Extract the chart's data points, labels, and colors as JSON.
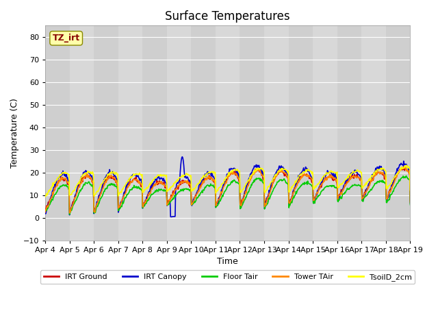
{
  "title": "Surface Temperatures",
  "xlabel": "Time",
  "ylabel": "Temperature (C)",
  "ylim": [
    -10,
    85
  ],
  "yticks": [
    -10,
    0,
    10,
    20,
    30,
    40,
    50,
    60,
    70,
    80
  ],
  "date_labels": [
    "Apr 4",
    "Apr 5",
    "Apr 6",
    "Apr 7",
    "Apr 8",
    "Apr 9",
    "Apr 10",
    "Apr 11",
    "Apr 12",
    "Apr 13",
    "Apr 14",
    "Apr 15",
    "Apr 16",
    "Apr 17",
    "Apr 18",
    "Apr 19"
  ],
  "lines": {
    "IRT Ground": {
      "color": "#cc0000",
      "lw": 1.2
    },
    "IRT Canopy": {
      "color": "#0000cc",
      "lw": 1.2
    },
    "Floor Tair": {
      "color": "#00cc00",
      "lw": 1.2
    },
    "Tower TAir": {
      "color": "#ff8800",
      "lw": 1.2
    },
    "TsoilD_2cm": {
      "color": "#ffff00",
      "lw": 1.2
    }
  },
  "annotation_text": "TZ_irt",
  "annotation_color": "#880000",
  "annotation_bg": "#ffffaa",
  "plot_bg_color": "#d8d8d8",
  "grid_color": "#ffffff",
  "title_fontsize": 12,
  "label_fontsize": 9,
  "tick_fontsize": 8
}
